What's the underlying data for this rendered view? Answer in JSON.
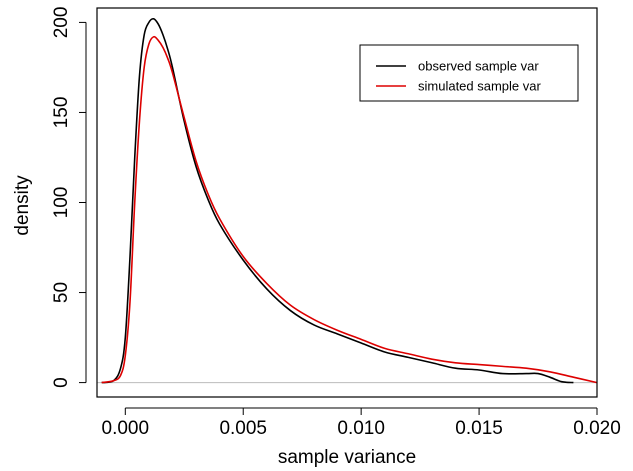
{
  "chart_data": {
    "type": "line",
    "title": "",
    "xlabel": "sample variance",
    "ylabel": "density",
    "xlim": [
      -0.0012,
      0.02
    ],
    "ylim": [
      -8,
      208
    ],
    "xticks": [
      0.0,
      0.005,
      0.01,
      0.015,
      0.02
    ],
    "xtick_labels": [
      "0.000",
      "0.005",
      "0.010",
      "0.015",
      "0.020"
    ],
    "yticks": [
      0,
      50,
      100,
      150,
      200
    ],
    "ytick_labels": [
      "0",
      "50",
      "100",
      "150",
      "200"
    ],
    "grid": false,
    "baseline_y": 0,
    "legend": {
      "placement": "top-right"
    },
    "series": [
      {
        "name": "observed sample var",
        "color": "#000000",
        "x": [
          -0.001,
          -0.0005,
          -0.0002,
          0.0,
          0.0002,
          0.0004,
          0.0006,
          0.0008,
          0.001,
          0.0012,
          0.0014,
          0.0016,
          0.0018,
          0.002,
          0.0025,
          0.003,
          0.0035,
          0.004,
          0.005,
          0.006,
          0.007,
          0.008,
          0.009,
          0.01,
          0.011,
          0.012,
          0.013,
          0.014,
          0.015,
          0.016,
          0.017,
          0.0175,
          0.018,
          0.0185,
          0.019
        ],
        "y": [
          0,
          1,
          8,
          25,
          70,
          125,
          170,
          193,
          200,
          202,
          199,
          193,
          185,
          175,
          145,
          120,
          102,
          88,
          68,
          52,
          40,
          32,
          27,
          22,
          17,
          14,
          11,
          8,
          7,
          5,
          5,
          5,
          3,
          0.5,
          0
        ]
      },
      {
        "name": "simulated sample var",
        "color": "#dd0000",
        "x": [
          -0.001,
          -0.0005,
          -0.0002,
          0.0,
          0.0002,
          0.0004,
          0.0006,
          0.0008,
          0.001,
          0.0012,
          0.0014,
          0.0016,
          0.0018,
          0.002,
          0.0025,
          0.003,
          0.0035,
          0.004,
          0.005,
          0.006,
          0.007,
          0.008,
          0.009,
          0.01,
          0.011,
          0.012,
          0.013,
          0.014,
          0.015,
          0.016,
          0.017,
          0.018,
          0.019,
          0.02
        ],
        "y": [
          0,
          1,
          4,
          15,
          45,
          100,
          145,
          175,
          188,
          192,
          190,
          186,
          180,
          172,
          147,
          123,
          105,
          91,
          70,
          55,
          43,
          35,
          29,
          24,
          19,
          16,
          13,
          11,
          10,
          9,
          8,
          6,
          3,
          0
        ]
      }
    ]
  }
}
